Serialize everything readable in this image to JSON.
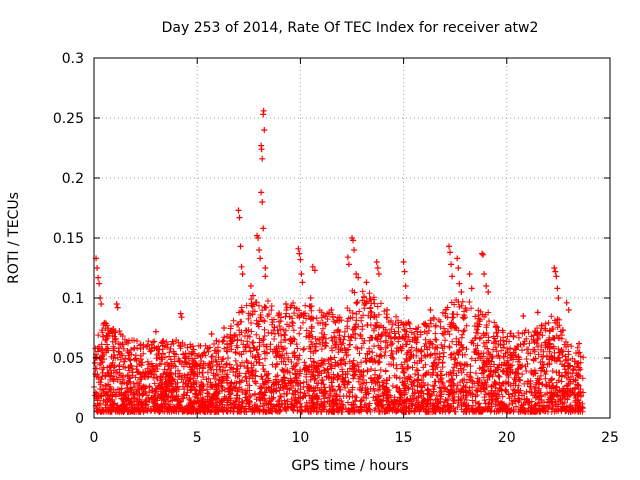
{
  "chart_data": {
    "type": "scatter",
    "title": "Day 253 of 2014, Rate Of TEC Index for receiver atw2",
    "xlabel": "GPS time / hours",
    "ylabel": "ROTI / TECUs",
    "xlim": [
      0,
      25
    ],
    "ylim": [
      0,
      0.3
    ],
    "x_ticks": [
      0,
      5,
      10,
      15,
      20,
      25
    ],
    "x_tick_labels": [
      "0",
      "5",
      "10",
      "15",
      "20",
      "25"
    ],
    "y_ticks": [
      0,
      0.05,
      0.1,
      0.15,
      0.2,
      0.25,
      0.3
    ],
    "y_tick_labels": [
      "0",
      "0.05",
      "0.1",
      "0.15",
      "0.2",
      "0.25",
      "0.3"
    ],
    "grid": true,
    "marker": "+",
    "series_color": "#ff0000",
    "x_range_data": [
      0,
      23.7
    ],
    "envelope": {
      "hours": [
        0,
        0.5,
        1,
        1.5,
        2,
        3,
        4,
        5,
        6,
        6.5,
        7,
        7.5,
        8,
        8.5,
        9,
        10,
        11,
        12,
        12.5,
        13,
        14,
        15,
        16,
        17,
        17.5,
        18,
        19,
        20,
        21,
        22,
        22.5,
        23,
        23.7
      ],
      "upper_roti": [
        0.07,
        0.08,
        0.075,
        0.07,
        0.065,
        0.065,
        0.065,
        0.06,
        0.065,
        0.075,
        0.09,
        0.1,
        0.1,
        0.1,
        0.09,
        0.1,
        0.09,
        0.085,
        0.11,
        0.11,
        0.095,
        0.08,
        0.08,
        0.09,
        0.1,
        0.1,
        0.09,
        0.07,
        0.075,
        0.085,
        0.085,
        0.06,
        0.06
      ],
      "lower_roti": [
        0.005,
        0.005,
        0.005,
        0.005,
        0.005,
        0.005,
        0.005,
        0.005,
        0.005,
        0.005,
        0.005,
        0.005,
        0.005,
        0.005,
        0.005,
        0.005,
        0.005,
        0.005,
        0.005,
        0.005,
        0.005,
        0.005,
        0.005,
        0.005,
        0.005,
        0.005,
        0.005,
        0.005,
        0.005,
        0.005,
        0.005,
        0.005,
        0.005
      ]
    },
    "outliers": [
      {
        "x": 0.1,
        "y": 0.133
      },
      {
        "x": 0.15,
        "y": 0.125
      },
      {
        "x": 0.2,
        "y": 0.117
      },
      {
        "x": 0.25,
        "y": 0.112
      },
      {
        "x": 0.3,
        "y": 0.1
      },
      {
        "x": 0.35,
        "y": 0.095
      },
      {
        "x": 1.1,
        "y": 0.095
      },
      {
        "x": 1.15,
        "y": 0.092
      },
      {
        "x": 4.2,
        "y": 0.087
      },
      {
        "x": 4.25,
        "y": 0.084
      },
      {
        "x": 7.0,
        "y": 0.173
      },
      {
        "x": 7.05,
        "y": 0.167
      },
      {
        "x": 7.1,
        "y": 0.143
      },
      {
        "x": 7.15,
        "y": 0.126
      },
      {
        "x": 7.2,
        "y": 0.12
      },
      {
        "x": 7.6,
        "y": 0.11
      },
      {
        "x": 7.7,
        "y": 0.102
      },
      {
        "x": 7.9,
        "y": 0.152
      },
      {
        "x": 7.95,
        "y": 0.15
      },
      {
        "x": 8.0,
        "y": 0.14
      },
      {
        "x": 8.05,
        "y": 0.133
      },
      {
        "x": 8.1,
        "y": 0.227
      },
      {
        "x": 8.12,
        "y": 0.224
      },
      {
        "x": 8.15,
        "y": 0.216
      },
      {
        "x": 8.2,
        "y": 0.253
      },
      {
        "x": 8.22,
        "y": 0.256
      },
      {
        "x": 8.25,
        "y": 0.24
      },
      {
        "x": 8.1,
        "y": 0.188
      },
      {
        "x": 8.15,
        "y": 0.18
      },
      {
        "x": 8.2,
        "y": 0.158
      },
      {
        "x": 8.3,
        "y": 0.125
      },
      {
        "x": 8.3,
        "y": 0.118
      },
      {
        "x": 9.9,
        "y": 0.141
      },
      {
        "x": 9.95,
        "y": 0.137
      },
      {
        "x": 10.0,
        "y": 0.132
      },
      {
        "x": 10.05,
        "y": 0.12
      },
      {
        "x": 10.1,
        "y": 0.113
      },
      {
        "x": 10.6,
        "y": 0.126
      },
      {
        "x": 10.7,
        "y": 0.123
      },
      {
        "x": 12.5,
        "y": 0.15
      },
      {
        "x": 12.55,
        "y": 0.148
      },
      {
        "x": 12.6,
        "y": 0.14
      },
      {
        "x": 12.3,
        "y": 0.134
      },
      {
        "x": 12.35,
        "y": 0.128
      },
      {
        "x": 12.7,
        "y": 0.12
      },
      {
        "x": 12.8,
        "y": 0.117
      },
      {
        "x": 13.2,
        "y": 0.113
      },
      {
        "x": 13.7,
        "y": 0.13
      },
      {
        "x": 13.75,
        "y": 0.125
      },
      {
        "x": 13.8,
        "y": 0.12
      },
      {
        "x": 15.0,
        "y": 0.13
      },
      {
        "x": 15.05,
        "y": 0.122
      },
      {
        "x": 15.1,
        "y": 0.11
      },
      {
        "x": 15.15,
        "y": 0.1
      },
      {
        "x": 17.2,
        "y": 0.143
      },
      {
        "x": 17.25,
        "y": 0.138
      },
      {
        "x": 17.3,
        "y": 0.128
      },
      {
        "x": 17.35,
        "y": 0.118
      },
      {
        "x": 17.6,
        "y": 0.133
      },
      {
        "x": 17.65,
        "y": 0.125
      },
      {
        "x": 17.7,
        "y": 0.112
      },
      {
        "x": 17.8,
        "y": 0.105
      },
      {
        "x": 18.2,
        "y": 0.12
      },
      {
        "x": 18.3,
        "y": 0.108
      },
      {
        "x": 18.8,
        "y": 0.137
      },
      {
        "x": 18.85,
        "y": 0.136
      },
      {
        "x": 18.9,
        "y": 0.12
      },
      {
        "x": 19.0,
        "y": 0.11
      },
      {
        "x": 19.1,
        "y": 0.105
      },
      {
        "x": 22.3,
        "y": 0.125
      },
      {
        "x": 22.35,
        "y": 0.122
      },
      {
        "x": 22.4,
        "y": 0.118
      },
      {
        "x": 22.45,
        "y": 0.108
      },
      {
        "x": 22.5,
        "y": 0.1
      },
      {
        "x": 22.9,
        "y": 0.096
      },
      {
        "x": 23.0,
        "y": 0.09
      },
      {
        "x": 3.0,
        "y": 0.072
      },
      {
        "x": 5.7,
        "y": 0.07
      },
      {
        "x": 6.3,
        "y": 0.075
      },
      {
        "x": 9.3,
        "y": 0.095
      },
      {
        "x": 10.5,
        "y": 0.1
      },
      {
        "x": 11.5,
        "y": 0.09
      },
      {
        "x": 14.2,
        "y": 0.09
      },
      {
        "x": 16.3,
        "y": 0.09
      },
      {
        "x": 20.8,
        "y": 0.085
      },
      {
        "x": 21.5,
        "y": 0.088
      },
      {
        "x": 23.5,
        "y": 0.062
      }
    ]
  }
}
